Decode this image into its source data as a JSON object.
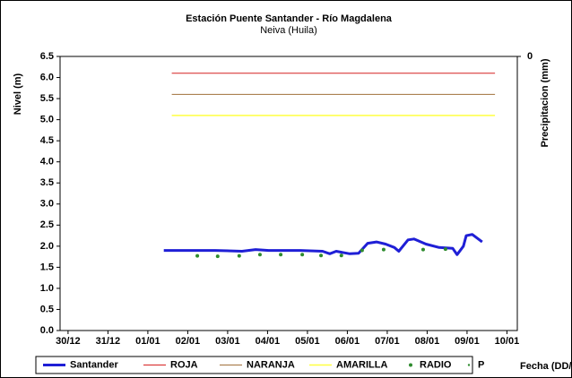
{
  "chart_data": {
    "type": "line",
    "title": "Estación Puente Santander - Río Magdalena",
    "subtitle": "Neiva (Huila)",
    "ylabel": "Nivel (m)",
    "y2label": "Precipitacion (mm)",
    "xlabel": "Fecha (DD/M/AA)",
    "xlim": [
      -0.2,
      11.26
    ],
    "xticks": [
      {
        "value": 0,
        "label": "30/12"
      },
      {
        "value": 1,
        "label": "31/12"
      },
      {
        "value": 2,
        "label": "01/01"
      },
      {
        "value": 3,
        "label": "02/01"
      },
      {
        "value": 4,
        "label": "03/01"
      },
      {
        "value": 5,
        "label": "04/01"
      },
      {
        "value": 6,
        "label": "05/01"
      },
      {
        "value": 7,
        "label": "06/01"
      },
      {
        "value": 8,
        "label": "07/01"
      },
      {
        "value": 9,
        "label": "08/01"
      },
      {
        "value": 10,
        "label": "09/01"
      },
      {
        "value": 11,
        "label": "10/01"
      }
    ],
    "ylim": [
      0,
      6.5
    ],
    "yticks": [
      {
        "value": 0,
        "label": "0.0"
      },
      {
        "value": 0.5,
        "label": "0.5"
      },
      {
        "value": 1,
        "label": "1.0"
      },
      {
        "value": 1.5,
        "label": "1.5"
      },
      {
        "value": 2,
        "label": "2.0"
      },
      {
        "value": 2.5,
        "label": "2.5"
      },
      {
        "value": 3,
        "label": "3.0"
      },
      {
        "value": 3.5,
        "label": "3.5"
      },
      {
        "value": 4,
        "label": "4.0"
      },
      {
        "value": 4.5,
        "label": "4.5"
      },
      {
        "value": 5,
        "label": "5.0"
      },
      {
        "value": 5.5,
        "label": "5.5"
      },
      {
        "value": 6,
        "label": "6.0"
      },
      {
        "value": 6.5,
        "label": "6.5"
      }
    ],
    "y2ticks": [
      0
    ],
    "y2_inverted": true,
    "grid": false,
    "series": [
      {
        "name": "Santander",
        "color": "#1f1fd6",
        "marker": "line",
        "width": 3,
        "x": [
          2.4,
          3.01,
          3.69,
          4.36,
          4.7,
          5.03,
          5.82,
          6.38,
          6.56,
          6.72,
          7.06,
          7.28,
          7.51,
          7.73,
          7.96,
          8.18,
          8.29,
          8.52,
          8.67,
          8.97,
          9.3,
          9.64,
          9.75,
          9.91,
          9.98,
          10.13,
          10.38
        ],
        "values": [
          1.9,
          1.9,
          1.9,
          1.88,
          1.92,
          1.9,
          1.9,
          1.88,
          1.82,
          1.88,
          1.82,
          1.83,
          2.07,
          2.1,
          2.05,
          1.97,
          1.88,
          2.15,
          2.17,
          2.05,
          1.97,
          1.95,
          1.8,
          2.0,
          2.25,
          2.28,
          2.1
        ]
      },
      {
        "name": "ROJA",
        "color": "#d62020",
        "marker": "line",
        "width": 1,
        "x": [
          2.6,
          10.7
        ],
        "values": [
          6.1,
          6.1
        ]
      },
      {
        "name": "NARANJA",
        "color": "#a0703a",
        "marker": "line",
        "width": 1,
        "x": [
          2.6,
          10.7
        ],
        "values": [
          5.6,
          5.6
        ]
      },
      {
        "name": "AMARILLA",
        "color": "#ffff40",
        "marker": "line",
        "width": 1.5,
        "x": [
          2.6,
          10.7
        ],
        "values": [
          5.1,
          5.1
        ]
      },
      {
        "name": "RADIO",
        "color": "#2e8b2e",
        "marker": "dot",
        "width": 2,
        "x": [
          3.24,
          3.75,
          4.29,
          4.81,
          5.33,
          5.87,
          6.34,
          6.85,
          7.37,
          7.91,
          8.9,
          9.46
        ],
        "values": [
          1.77,
          1.76,
          1.77,
          1.8,
          1.8,
          1.8,
          1.78,
          1.78,
          1.9,
          1.92,
          1.92,
          1.93
        ]
      },
      {
        "name": "P",
        "color": "#2e8b2e",
        "marker": "dot",
        "width": 1.2,
        "x": [],
        "values": []
      }
    ]
  }
}
